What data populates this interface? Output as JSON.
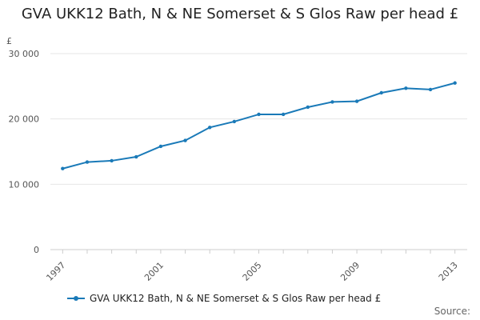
{
  "chart_data": {
    "type": "line",
    "title": "GVA UKK12 Bath, N & NE Somerset & S Glos Raw per head £",
    "ylabel": "£",
    "xlabel": "",
    "ylim": [
      0,
      30000
    ],
    "y_ticks": [
      0,
      10000,
      20000,
      30000
    ],
    "y_tick_labels": [
      "0",
      "10 000",
      "20 000",
      "30 000"
    ],
    "x_ticks": [
      1997,
      2001,
      2005,
      2009,
      2013
    ],
    "x_tick_labels": [
      "1997",
      "2001",
      "2005",
      "2009",
      "2013"
    ],
    "x": [
      1997,
      1998,
      1999,
      2000,
      2001,
      2002,
      2003,
      2004,
      2005,
      2006,
      2007,
      2008,
      2009,
      2010,
      2011,
      2012,
      2013
    ],
    "series": [
      {
        "name": "GVA UKK12 Bath, N & NE Somerset & S Glos Raw per head £",
        "color": "#1a7ab8",
        "values": [
          12400,
          13400,
          13600,
          14200,
          15800,
          16700,
          18700,
          19600,
          20700,
          20700,
          21800,
          22600,
          22700,
          24000,
          24700,
          24500,
          25500
        ]
      }
    ],
    "grid": true,
    "legend": "bottom"
  },
  "credits": "Source:"
}
